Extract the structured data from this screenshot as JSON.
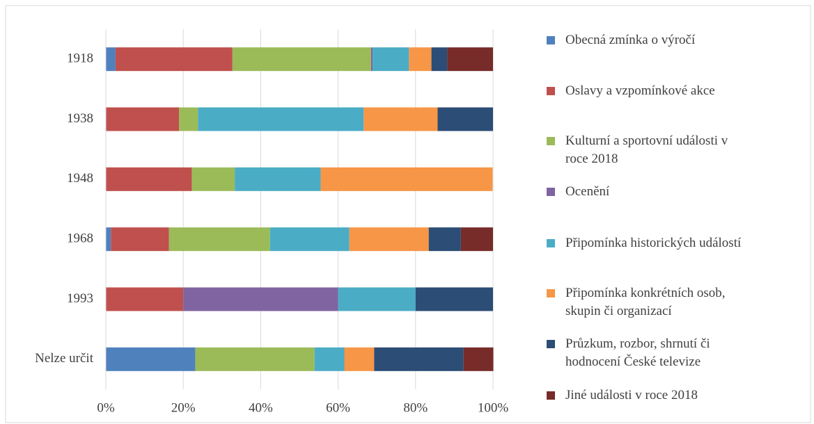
{
  "chart_data": {
    "type": "stacked_barh",
    "categories": [
      "1918",
      "1938",
      "1948",
      "1968",
      "1993",
      "Nelze určit"
    ],
    "series": [
      {
        "name": "Obecná zmínka o výročí",
        "color": "#4f81bd",
        "values": [
          2.5,
          0,
          0,
          1.3,
          0,
          23.1
        ]
      },
      {
        "name": "Oslavy a vzpomínkové akce",
        "color": "#c0504d",
        "values": [
          30.2,
          18.9,
          22.2,
          15.0,
          20,
          0
        ]
      },
      {
        "name": "Kulturní a sportovní události v roce 2018",
        "color": "#9bbb59",
        "values": [
          35.8,
          4.9,
          11.1,
          26.1,
          0,
          30.8
        ]
      },
      {
        "name": "Ocenění",
        "color": "#8064a2",
        "values": [
          0.4,
          0,
          0,
          0,
          40,
          0
        ]
      },
      {
        "name": "Připomínka historických událostí",
        "color": "#4bacc6",
        "values": [
          9.4,
          42.8,
          22.2,
          20.5,
          20,
          7.7
        ]
      },
      {
        "name": "Připomínka konkrétních osob, skupin či organizací",
        "color": "#f79646",
        "values": [
          5.8,
          19.1,
          44.4,
          20.5,
          0,
          7.7
        ]
      },
      {
        "name": "Průzkum, rozbor, shrnutí či hodnocení České televize",
        "color": "#2c4d75",
        "values": [
          4.1,
          14.3,
          0,
          8.3,
          20,
          23.1
        ]
      },
      {
        "name": "Jiné události v roce 2018",
        "color": "#772c2a",
        "values": [
          11.8,
          0,
          0,
          8.3,
          0,
          7.7
        ]
      }
    ],
    "xlim": [
      0,
      100
    ],
    "xticks": [
      {
        "value": 0,
        "label": "0%"
      },
      {
        "value": 20,
        "label": "20%"
      },
      {
        "value": 40,
        "label": "40%"
      },
      {
        "value": 60,
        "label": "60%"
      },
      {
        "value": 80,
        "label": "80%"
      },
      {
        "value": 100,
        "label": "100%"
      }
    ],
    "grid": true,
    "legend": "right"
  }
}
